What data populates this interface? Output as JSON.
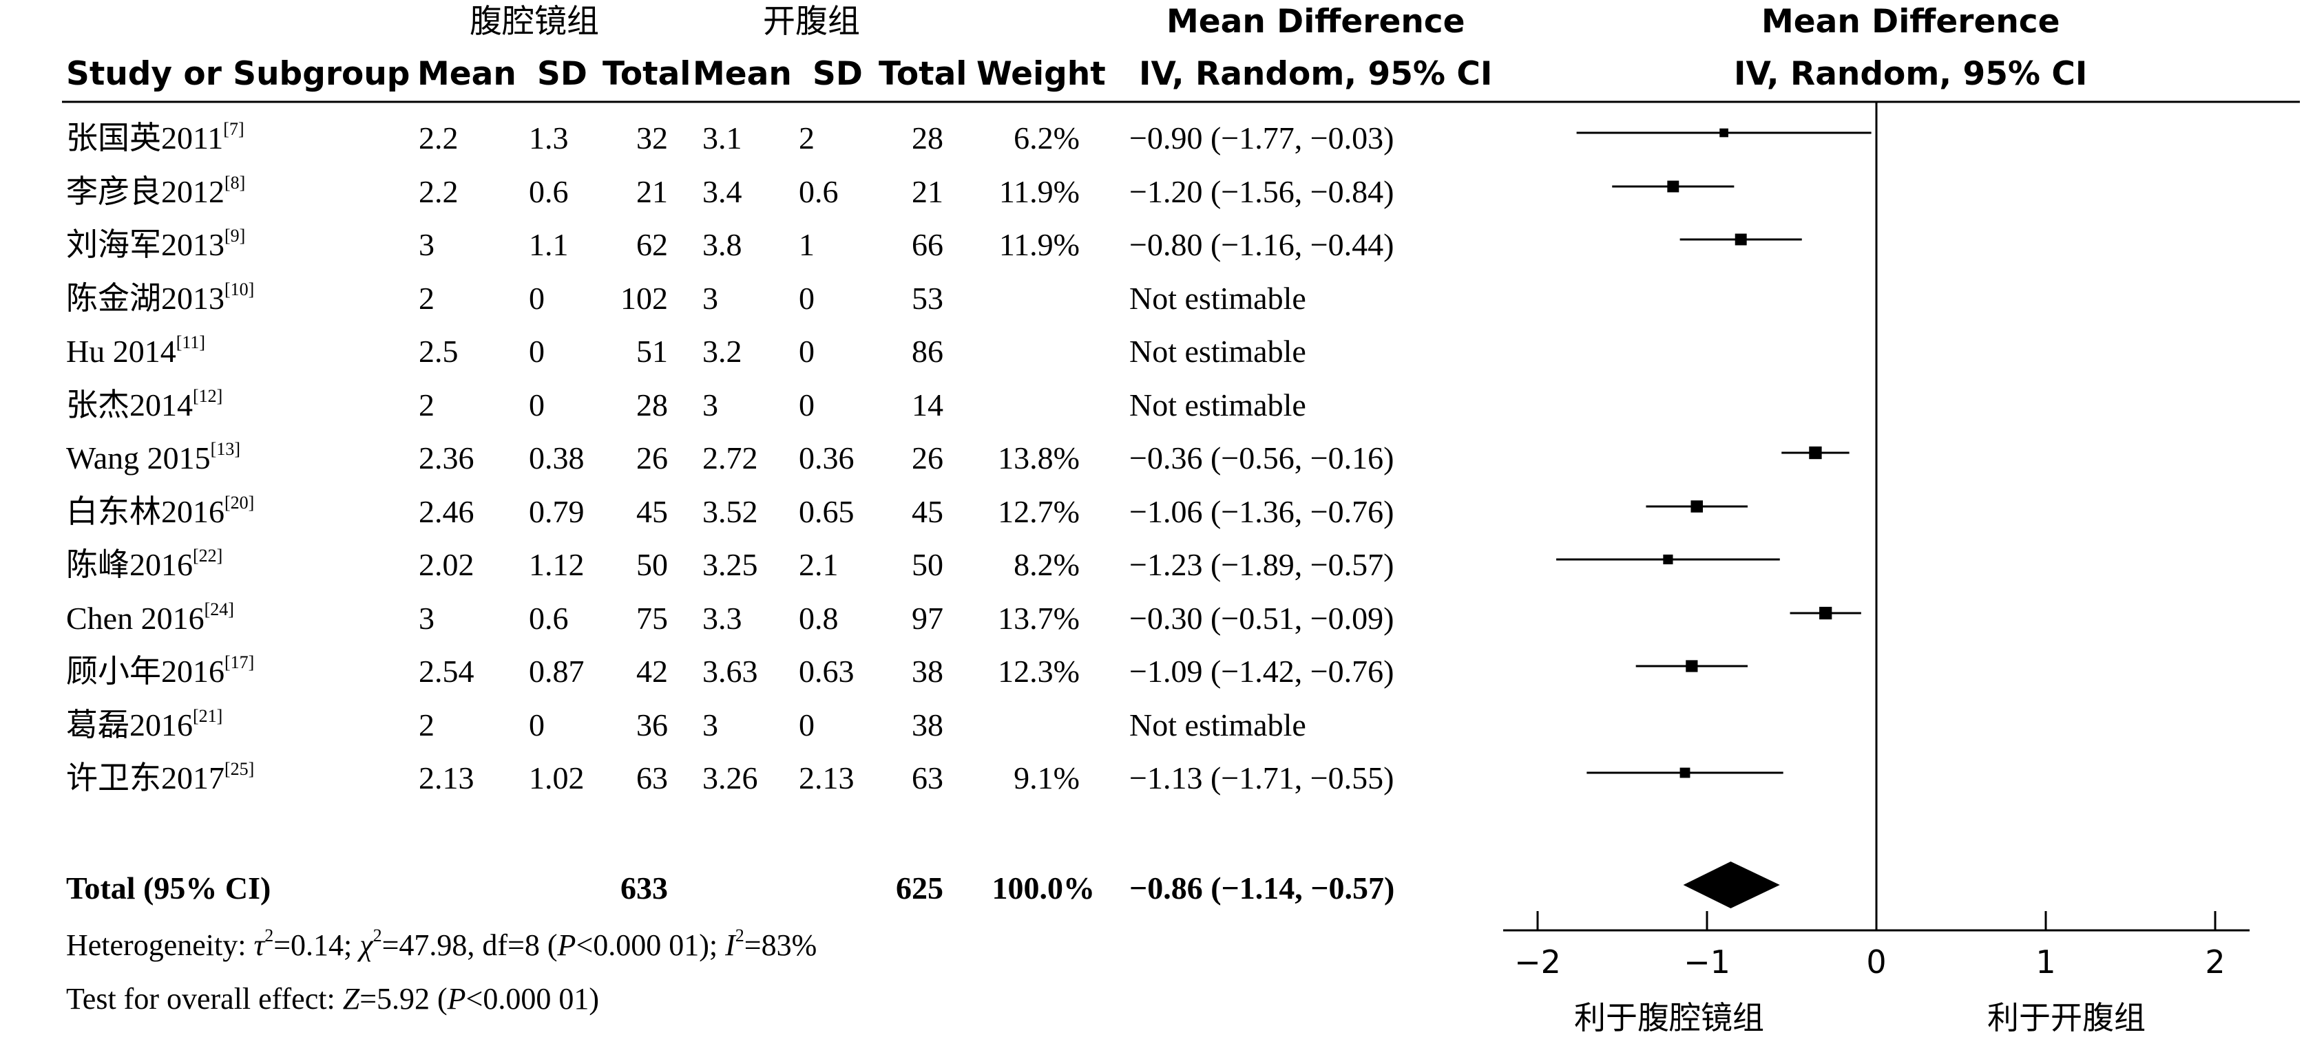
{
  "header": {
    "group1": "腹腔镜组",
    "group2": "开腹组",
    "md_title_left": "Mean Difference",
    "md_sub_left": "IV, Random, 95% CI",
    "md_title_right": "Mean Difference",
    "md_sub_right": "IV, Random, 95% CI",
    "col_study": "Study or Subgroup",
    "col_mean1": "Mean",
    "col_sd1": "SD",
    "col_total1": "Total",
    "col_mean2": "Mean",
    "col_sd2": "SD",
    "col_total2": "Total",
    "col_weight": "Weight"
  },
  "rows": [
    {
      "study": "张国英2011",
      "ref": "[7]",
      "mean1": "2.2",
      "sd1": "1.3",
      "total1": "32",
      "mean2": "3.1",
      "sd2": "2",
      "total2": "28",
      "weight": "6.2%",
      "ci": "−0.90 (−1.77, −0.03)"
    },
    {
      "study": "李彦良2012",
      "ref": "[8]",
      "mean1": "2.2",
      "sd1": "0.6",
      "total1": "21",
      "mean2": "3.4",
      "sd2": "0.6",
      "total2": "21",
      "weight": "11.9%",
      "ci": "−1.20 (−1.56, −0.84)"
    },
    {
      "study": "刘海军2013",
      "ref": "[9]",
      "mean1": "3",
      "sd1": "1.1",
      "total1": "62",
      "mean2": "3.8",
      "sd2": "1",
      "total2": "66",
      "weight": "11.9%",
      "ci": "−0.80 (−1.16, −0.44)"
    },
    {
      "study": "陈金湖2013",
      "ref": "[10]",
      "mean1": "2",
      "sd1": "0",
      "total1": "102",
      "mean2": "3",
      "sd2": "0",
      "total2": "53",
      "weight": "",
      "ci": "Not estimable"
    },
    {
      "study": "Hu 2014",
      "ref": "[11]",
      "mean1": "2.5",
      "sd1": "0",
      "total1": "51",
      "mean2": "3.2",
      "sd2": "0",
      "total2": "86",
      "weight": "",
      "ci": "Not estimable"
    },
    {
      "study": "张杰2014",
      "ref": "[12]",
      "mean1": "2",
      "sd1": "0",
      "total1": "28",
      "mean2": "3",
      "sd2": "0",
      "total2": "14",
      "weight": "",
      "ci": "Not estimable"
    },
    {
      "study": "Wang 2015",
      "ref": "[13]",
      "mean1": "2.36",
      "sd1": "0.38",
      "total1": "26",
      "mean2": "2.72",
      "sd2": "0.36",
      "total2": "26",
      "weight": "13.8%",
      "ci": "−0.36 (−0.56, −0.16)"
    },
    {
      "study": "白东林2016",
      "ref": "[20]",
      "mean1": "2.46",
      "sd1": "0.79",
      "total1": "45",
      "mean2": "3.52",
      "sd2": "0.65",
      "total2": "45",
      "weight": "12.7%",
      "ci": "−1.06 (−1.36, −0.76)"
    },
    {
      "study": "陈峰2016",
      "ref": "[22]",
      "mean1": "2.02",
      "sd1": "1.12",
      "total1": "50",
      "mean2": "3.25",
      "sd2": "2.1",
      "total2": "50",
      "weight": "8.2%",
      "ci": "−1.23 (−1.89, −0.57)"
    },
    {
      "study": "Chen 2016",
      "ref": "[24]",
      "mean1": "3",
      "sd1": "0.6",
      "total1": "75",
      "mean2": "3.3",
      "sd2": "0.8",
      "total2": "97",
      "weight": "13.7%",
      "ci": "−0.30 (−0.51, −0.09)"
    },
    {
      "study": "顾小年2016",
      "ref": "[17]",
      "mean1": "2.54",
      "sd1": "0.87",
      "total1": "42",
      "mean2": "3.63",
      "sd2": "0.63",
      "total2": "38",
      "weight": "12.3%",
      "ci": "−1.09 (−1.42, −0.76)"
    },
    {
      "study": "葛磊2016",
      "ref": "[21]",
      "mean1": "2",
      "sd1": "0",
      "total1": "36",
      "mean2": "3",
      "sd2": "0",
      "total2": "38",
      "weight": "",
      "ci": "Not estimable"
    },
    {
      "study": "许卫东2017",
      "ref": "[25]",
      "mean1": "2.13",
      "sd1": "1.02",
      "total1": "63",
      "mean2": "3.26",
      "sd2": "2.13",
      "total2": "63",
      "weight": "9.1%",
      "ci": "−1.13 (−1.71, −0.55)"
    }
  ],
  "total": {
    "label": "Total (95% CI)",
    "total1": "633",
    "total2": "625",
    "weight": "100.0%",
    "ci": "−0.86 (−1.14, −0.57)"
  },
  "heterogeneity": {
    "prefix": "Heterogeneity: ",
    "tau_sym": "τ",
    "tau_val": "=0.14; ",
    "chi_sym": "χ",
    "chi_val": "=47.98, df=8 (",
    "p_sym": "P",
    "p_val": "<0.000 01); ",
    "i_sym": "I",
    "i_val": "=83%"
  },
  "overall": {
    "prefix": "Test for overall effect: ",
    "z_sym": "Z",
    "z_val": "=5.92 (",
    "p_sym": "P",
    "p_val": "<0.000 01)"
  },
  "favours": {
    "left": "利于腹腔镜组",
    "right": "利于开腹组"
  },
  "chart_data": {
    "type": "scatter",
    "subtype": "forest-plot",
    "x_ticks": [
      "−2",
      "−1",
      "0",
      "1",
      "2"
    ],
    "x_tick_values": [
      -2,
      -1,
      0,
      1,
      2
    ],
    "xlim": [
      -2,
      2
    ],
    "null_line": 0,
    "studies": [
      {
        "row": 0,
        "md": -0.9,
        "lo": -1.77,
        "hi": -0.03,
        "weight": 6.2
      },
      {
        "row": 1,
        "md": -1.2,
        "lo": -1.56,
        "hi": -0.84,
        "weight": 11.9
      },
      {
        "row": 2,
        "md": -0.8,
        "lo": -1.16,
        "hi": -0.44,
        "weight": 11.9
      },
      {
        "row": 6,
        "md": -0.36,
        "lo": -0.56,
        "hi": -0.16,
        "weight": 13.8
      },
      {
        "row": 7,
        "md": -1.06,
        "lo": -1.36,
        "hi": -0.76,
        "weight": 12.7
      },
      {
        "row": 8,
        "md": -1.23,
        "lo": -1.89,
        "hi": -0.57,
        "weight": 8.2
      },
      {
        "row": 9,
        "md": -0.3,
        "lo": -0.51,
        "hi": -0.09,
        "weight": 13.7
      },
      {
        "row": 10,
        "md": -1.09,
        "lo": -1.42,
        "hi": -0.76,
        "weight": 12.3
      },
      {
        "row": 12,
        "md": -1.13,
        "lo": -1.71,
        "hi": -0.55,
        "weight": 9.1
      }
    ],
    "pooled": {
      "md": -0.86,
      "lo": -1.14,
      "hi": -0.57
    }
  }
}
